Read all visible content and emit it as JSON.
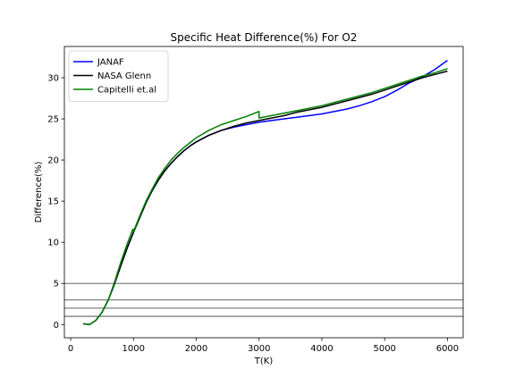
{
  "chart_data": {
    "type": "line",
    "title": "Specific Heat Difference(%) For O2",
    "xlabel": "T(K)",
    "ylabel": "Difference(%)",
    "xlim": [
      -100,
      6250
    ],
    "ylim": [
      -1.6,
      33.8
    ],
    "xticks": [
      0,
      1000,
      2000,
      3000,
      4000,
      5000,
      6000
    ],
    "yticks": [
      0,
      5,
      10,
      15,
      20,
      25,
      30
    ],
    "xtick_labels": [
      "0",
      "1000",
      "2000",
      "3000",
      "4000",
      "5000",
      "6000"
    ],
    "ytick_labels": [
      "0",
      "5",
      "10",
      "15",
      "20",
      "25",
      "30"
    ],
    "grid": false,
    "legend_position": "top-left",
    "reference_lines": [
      1,
      2,
      3,
      5
    ],
    "reference_line_color": "#808080",
    "series": [
      {
        "name": "JANAF",
        "color": "#0000ff",
        "x": [
          200,
          300,
          400,
          500,
          600,
          700,
          800,
          900,
          1000,
          1100,
          1200,
          1300,
          1400,
          1500,
          1600,
          1700,
          1800,
          1900,
          2000,
          2200,
          2400,
          2600,
          2800,
          3000,
          3200,
          3400,
          3600,
          3800,
          4000,
          4200,
          4400,
          4600,
          4800,
          5000,
          5200,
          5400,
          5600,
          5800,
          6000
        ],
        "y": [
          0.1,
          0.0,
          0.5,
          1.5,
          3.0,
          5.0,
          7.2,
          9.3,
          11.2,
          13.0,
          14.8,
          16.3,
          17.6,
          18.7,
          19.6,
          20.4,
          21.1,
          21.7,
          22.2,
          23.0,
          23.6,
          24.0,
          24.3,
          24.6,
          24.8,
          25.0,
          25.2,
          25.4,
          25.6,
          25.9,
          26.2,
          26.6,
          27.1,
          27.7,
          28.5,
          29.4,
          30.1,
          31.0,
          32.1
        ]
      },
      {
        "name": "NASA Glenn",
        "color": "#000000",
        "x": [
          200,
          300,
          400,
          500,
          600,
          700,
          800,
          900,
          1000,
          1100,
          1200,
          1300,
          1400,
          1500,
          1600,
          1700,
          1800,
          1900,
          2000,
          2200,
          2400,
          2600,
          2800,
          3000,
          3200,
          3400,
          3600,
          3800,
          4000,
          4200,
          4400,
          4600,
          4800,
          5000,
          5200,
          5400,
          5600,
          5800,
          6000
        ],
        "y": [
          0.1,
          0.0,
          0.5,
          1.5,
          3.0,
          5.0,
          7.2,
          9.3,
          11.2,
          13.0,
          14.8,
          16.3,
          17.6,
          18.7,
          19.6,
          20.4,
          21.1,
          21.7,
          22.2,
          23.0,
          23.6,
          24.1,
          24.5,
          24.8,
          25.1,
          25.4,
          25.8,
          26.1,
          26.4,
          26.8,
          27.2,
          27.6,
          28.0,
          28.5,
          29.0,
          29.5,
          30.0,
          30.4,
          30.8
        ]
      },
      {
        "name": "Capitelli et.al",
        "color": "#008000",
        "x": [
          200,
          300,
          400,
          500,
          600,
          700,
          800,
          900,
          990,
          1000,
          1000.1,
          1100,
          1200,
          1300,
          1400,
          1500,
          1600,
          1700,
          1800,
          1900,
          2000,
          2200,
          2400,
          2600,
          2800,
          3000,
          3000.1,
          3200,
          3400,
          3600,
          3800,
          4000,
          4200,
          4400,
          4600,
          4800,
          5000,
          5200,
          5400,
          5600,
          5800,
          6000
        ],
        "y": [
          0.1,
          0.0,
          0.5,
          1.5,
          3.0,
          5.2,
          7.6,
          9.8,
          11.6,
          11.6,
          11.3,
          13.2,
          15.0,
          16.5,
          17.9,
          19.0,
          20.0,
          20.8,
          21.5,
          22.1,
          22.7,
          23.6,
          24.3,
          24.8,
          25.3,
          25.9,
          25.1,
          25.4,
          25.7,
          26.0,
          26.3,
          26.6,
          27.0,
          27.4,
          27.8,
          28.2,
          28.7,
          29.2,
          29.7,
          30.2,
          30.6,
          31.1
        ]
      }
    ]
  }
}
